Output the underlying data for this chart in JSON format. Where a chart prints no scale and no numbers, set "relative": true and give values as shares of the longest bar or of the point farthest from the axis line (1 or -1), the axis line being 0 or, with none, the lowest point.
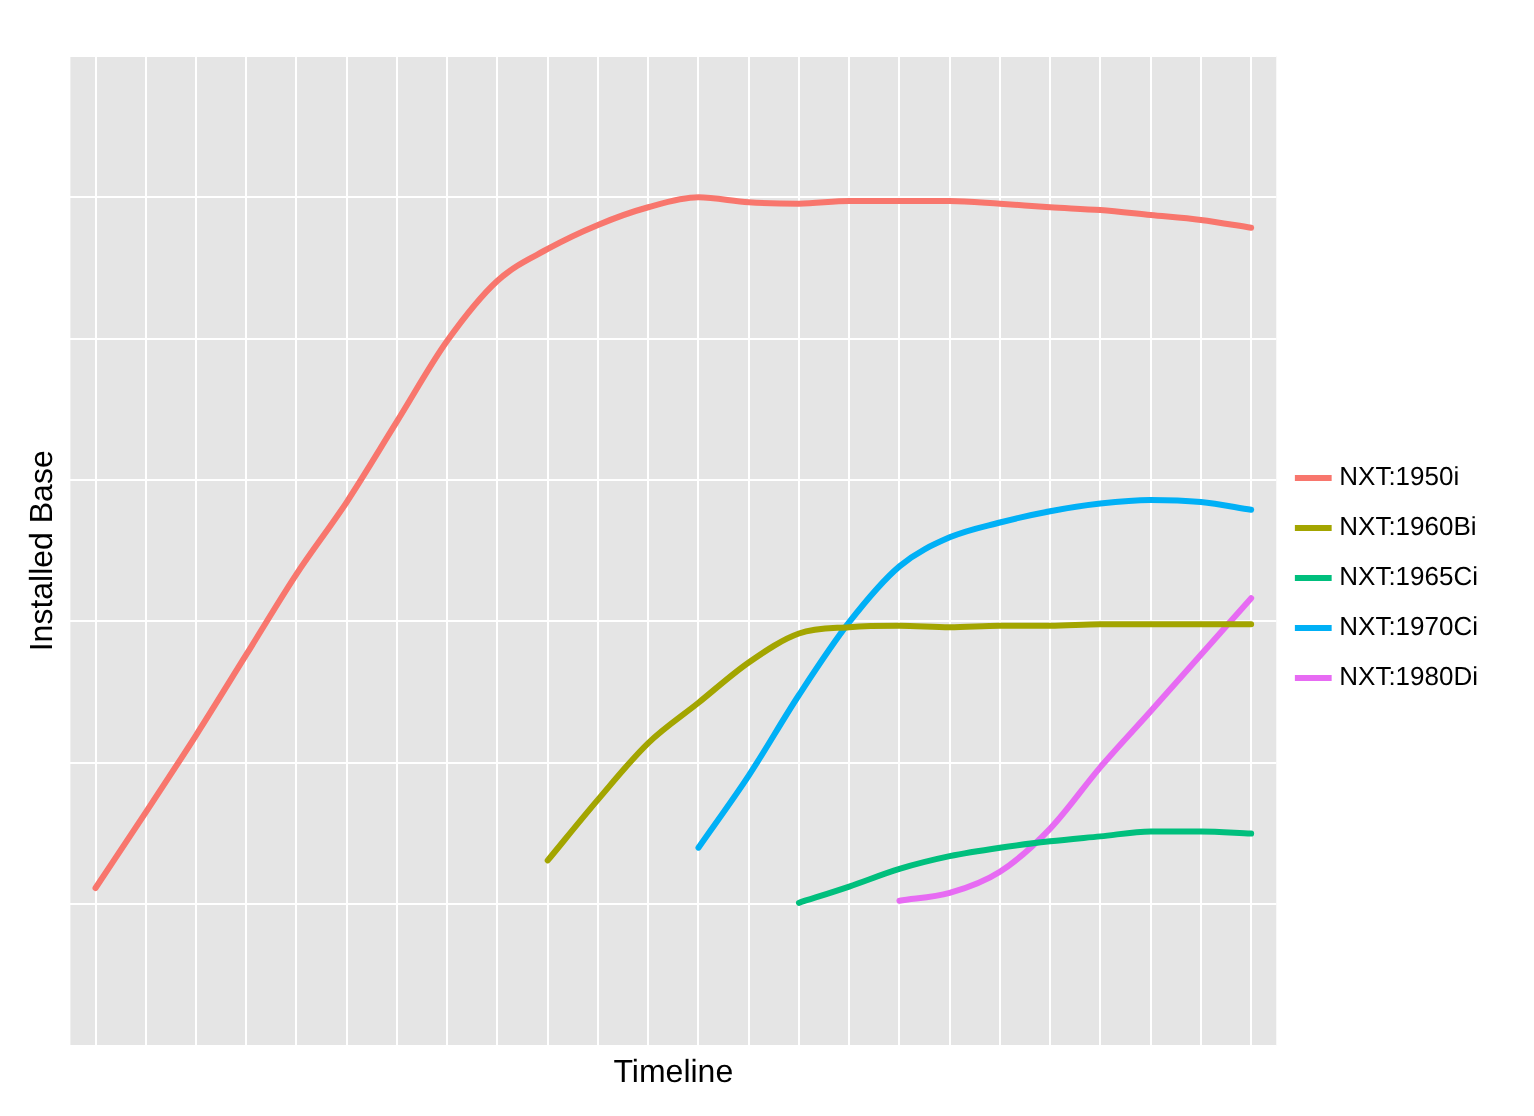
{
  "chart_data": {
    "type": "line",
    "xlabel": "Timeline",
    "ylabel": "Installed Base",
    "relative": true,
    "grid": true,
    "tick_labels": false,
    "legend": "right",
    "marker": "none",
    "line_style": "solid",
    "categories": [
      null,
      null,
      null,
      null,
      null,
      null,
      null,
      null,
      null,
      null,
      null,
      null,
      null,
      null,
      null,
      null,
      null,
      null,
      null,
      null,
      null,
      null,
      null,
      null
    ],
    "series": [
      {
        "name": "NXT:1950i",
        "color": "#f8766d",
        "values": [
          0.023,
          0.13,
          0.239,
          0.353,
          0.467,
          0.569,
          0.683,
          0.797,
          0.882,
          0.927,
          0.961,
          0.986,
          1,
          0.993,
          0.991,
          0.995,
          0.995,
          0.995,
          0.991,
          0.986,
          0.982,
          0.975,
          0.968,
          0.957
        ]
      },
      {
        "name": "NXT:1960Bi",
        "color": "#a3a500",
        "values": [
          null,
          null,
          null,
          null,
          null,
          null,
          null,
          null,
          null,
          0.062,
          0.148,
          0.228,
          0.285,
          0.342,
          0.383,
          0.392,
          0.394,
          0.392,
          0.394,
          0.394,
          0.396,
          0.396,
          0.396,
          0.396
        ]
      },
      {
        "name": "NXT:1965Ci",
        "color": "#00bf7d",
        "values": [
          null,
          null,
          null,
          null,
          null,
          null,
          null,
          null,
          null,
          null,
          null,
          null,
          null,
          null,
          0.002,
          0.025,
          0.05,
          0.068,
          0.08,
          0.089,
          0.096,
          0.103,
          0.103,
          0.1
        ]
      },
      {
        "name": "NXT:1970Ci",
        "color": "#00b0f6",
        "values": [
          null,
          null,
          null,
          null,
          null,
          null,
          null,
          null,
          null,
          null,
          null,
          null,
          0.08,
          0.182,
          0.296,
          0.399,
          0.478,
          0.519,
          0.54,
          0.556,
          0.567,
          0.572,
          0.569,
          0.558
        ]
      },
      {
        "name": "NXT:1980Di",
        "color": "#e76bf3",
        "values": [
          null,
          null,
          null,
          null,
          null,
          null,
          null,
          null,
          null,
          null,
          null,
          null,
          null,
          null,
          null,
          null,
          0.005,
          0.016,
          0.046,
          0.107,
          0.194,
          0.273,
          0.353,
          0.433
        ]
      }
    ]
  }
}
